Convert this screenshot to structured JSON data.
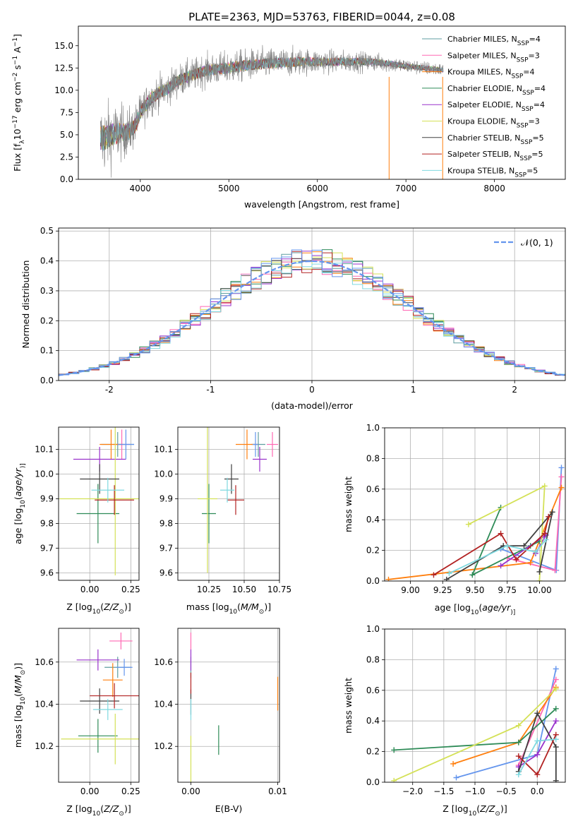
{
  "chart_data": [
    {
      "type": "line",
      "title": "PLATE=2363, MJD=53763, FIBERID=0044, z=0.08",
      "xlabel": "wavelength [Angstrom, rest frame]",
      "ylabel": "Flux [f$_\\lambda$10$^{-17}$ erg cm$^{-2}$ s$^{-1}$ A$^{-1}$]",
      "ylabel_parts": [
        "Flux [f",
        "λ",
        "10",
        "−17",
        " erg cm",
        "−2",
        " s",
        "−1",
        " A",
        "−1",
        "]"
      ],
      "xlim": [
        3300,
        8800
      ],
      "ylim": [
        0,
        17.2
      ],
      "xticks": [
        4000,
        5000,
        6000,
        7000,
        8000
      ],
      "yticks": [
        0.0,
        2.5,
        5.0,
        7.5,
        10.0,
        12.5,
        15.0
      ],
      "legend_position": "upper-right",
      "series": [
        {
          "name": "Chabrier MILES, N$_{SSP}$=4",
          "name_parts": [
            "Chabrier MILES, N",
            "SSP",
            "=4"
          ],
          "color": "#5f9ea0"
        },
        {
          "name": "Salpeter MILES, N$_{SSP}$=3",
          "name_parts": [
            "Salpeter MILES, N",
            "SSP",
            "=3"
          ],
          "color": "#ff69b4"
        },
        {
          "name": "Kroupa MILES, N$_{SSP}$=4",
          "name_parts": [
            "Kroupa MILES, N",
            "SSP",
            "=4"
          ],
          "color": "#ff7f0e"
        },
        {
          "name": "Chabrier ELODIE, N$_{SSP}$=4",
          "name_parts": [
            "Chabrier ELODIE, N",
            "SSP",
            "=4"
          ],
          "color": "#2e8b57"
        },
        {
          "name": "Salpeter ELODIE, N$_{SSP}$=4",
          "name_parts": [
            "Salpeter ELODIE, N",
            "SSP",
            "=4"
          ],
          "color": "#9932cc"
        },
        {
          "name": "Kroupa ELODIE, N$_{SSP}$=3",
          "name_parts": [
            "Kroupa ELODIE, N",
            "SSP",
            "=3"
          ],
          "color": "#d4e157"
        },
        {
          "name": "Chabrier STELIB, N$_{SSP}$=5",
          "name_parts": [
            "Chabrier STELIB, N",
            "SSP",
            "=5"
          ],
          "color": "#404040"
        },
        {
          "name": "Salpeter STELIB, N$_{SSP}$=5",
          "name_parts": [
            "Salpeter STELIB, N",
            "SSP",
            "=5"
          ],
          "color": "#b22222"
        },
        {
          "name": "Kroupa STELIB, N$_{SSP}$=5",
          "name_parts": [
            "Kroupa STELIB, N",
            "SSP",
            "=5"
          ],
          "color": "#7fd9e0"
        }
      ],
      "data_color": "#808080",
      "spectrum_continuum": [
        [
          3550,
          4.4
        ],
        [
          3650,
          4.9
        ],
        [
          3750,
          5.2
        ],
        [
          3850,
          5.3
        ],
        [
          3900,
          5.5
        ],
        [
          3950,
          6.2
        ],
        [
          4000,
          7.5
        ],
        [
          4100,
          8.9
        ],
        [
          4200,
          9.7
        ],
        [
          4300,
          10.1
        ],
        [
          4400,
          10.9
        ],
        [
          4500,
          11.4
        ],
        [
          4600,
          11.7
        ],
        [
          4700,
          12.1
        ],
        [
          4800,
          12.3
        ],
        [
          4900,
          12.4
        ],
        [
          5000,
          12.5
        ],
        [
          5200,
          12.8
        ],
        [
          5400,
          13.0
        ],
        [
          5600,
          13.1
        ],
        [
          5800,
          13.2
        ],
        [
          6000,
          13.2
        ],
        [
          6200,
          13.2
        ],
        [
          6400,
          13.2
        ],
        [
          6600,
          13.2
        ],
        [
          6800,
          13.0
        ],
        [
          7000,
          12.7
        ],
        [
          7200,
          12.5
        ],
        [
          7400,
          12.3
        ],
        [
          7600,
          12.1
        ],
        [
          7800,
          12.0
        ],
        [
          8000,
          11.9
        ],
        [
          8200,
          11.8
        ],
        [
          8400,
          11.7
        ],
        [
          8500,
          11.7
        ]
      ],
      "spectrum_noise_amplitude": [
        [
          3550,
          3.0
        ],
        [
          4000,
          1.5
        ],
        [
          4500,
          1.3
        ],
        [
          5000,
          1.3
        ],
        [
          5500,
          1.2
        ],
        [
          6000,
          1.0
        ],
        [
          6500,
          0.8
        ],
        [
          7000,
          0.6
        ],
        [
          7500,
          0.5
        ],
        [
          8000,
          0.4
        ],
        [
          8500,
          0.5
        ]
      ]
    },
    {
      "type": "histogram",
      "xlabel": "(data-model)/error",
      "ylabel": "Normed distribution",
      "xlim": [
        -2.5,
        2.5
      ],
      "ylim": [
        0,
        0.51
      ],
      "xticks": [
        -2,
        -1,
        0,
        1,
        2
      ],
      "yticks": [
        0.0,
        0.1,
        0.2,
        0.3,
        0.4,
        0.5
      ],
      "bin_width": 0.1,
      "bin_start": -2.5,
      "reference": {
        "name": "$\\mathcal{N}(0,1)$",
        "label": "𝒩(0, 1)",
        "color": "#6495ed",
        "mean": 0,
        "sigma": 1
      },
      "legend_position": "upper-right"
    },
    {
      "type": "scatter",
      "panel": "age-vs-Z",
      "xlabel": "Z [log$_{10}$(Z/Z$_\\odot$)]",
      "xlabel_parts": [
        "Z [log",
        "10",
        "(",
        "Z/Z",
        "⊙",
        ")]"
      ],
      "ylabel": "age  [log$_{10}$(age/yr)]",
      "ylabel_parts": [
        "age  [log",
        "10",
        "(",
        "age/yr",
        ")]"
      ],
      "xlim": [
        -0.19,
        0.3
      ],
      "ylim": [
        9.57,
        10.19
      ],
      "xticks": [
        0.0,
        0.25
      ],
      "xtick_labels": [
        "0.00",
        "0.25"
      ],
      "yticks": [
        9.6,
        9.7,
        9.8,
        9.9,
        10.0,
        10.1
      ],
      "points": [
        {
          "x": 0.17,
          "y": 10.12,
          "xerr": 0.1,
          "yerr": 0.05,
          "color": "#5f9ea0"
        },
        {
          "x": 0.195,
          "y": 10.12,
          "xerr": 0.05,
          "yerr": 0.06,
          "color": "#ff69b4"
        },
        {
          "x": 0.13,
          "y": 10.12,
          "xerr": 0.07,
          "yerr": 0.06,
          "color": "#ff7f0e"
        },
        {
          "x": 0.05,
          "y": 9.84,
          "xerr": 0.13,
          "yerr": 0.12,
          "color": "#2e8b57"
        },
        {
          "x": 0.06,
          "y": 10.06,
          "xerr": 0.16,
          "yerr": 0.05,
          "color": "#9932cc"
        },
        {
          "x": 0.155,
          "y": 9.9,
          "xerr": 0.34,
          "yerr": 0.31,
          "color": "#d4e157"
        },
        {
          "x": 0.06,
          "y": 9.98,
          "xerr": 0.12,
          "yerr": 0.06,
          "color": "#404040"
        },
        {
          "x": 0.15,
          "y": 9.895,
          "xerr": 0.12,
          "yerr": 0.06,
          "color": "#b22222"
        },
        {
          "x": 0.11,
          "y": 9.935,
          "xerr": 0.1,
          "yerr": 0.05,
          "color": "#7fd9e0"
        },
        {
          "x": 0.22,
          "y": 10.12,
          "xerr": 0.05,
          "yerr": 0.06,
          "color": "#6495ed"
        }
      ]
    },
    {
      "type": "scatter",
      "panel": "age-vs-mass",
      "xlabel": "mass [log$_{10}$(M/M$_\\odot$)]",
      "xlabel_parts": [
        "mass [log",
        "10",
        "(",
        "M/M",
        "⊙",
        ")]"
      ],
      "xlim": [
        10.03,
        10.75
      ],
      "ylim": [
        9.57,
        10.19
      ],
      "xticks": [
        10.25,
        10.5,
        10.75
      ],
      "xtick_labels": [
        "10.25",
        "10.50",
        "10.75"
      ],
      "yticks": [
        9.6,
        9.7,
        9.8,
        9.9,
        10.0,
        10.1
      ],
      "points": [
        {
          "x": 10.6,
          "y": 10.12,
          "xerr": 0.05,
          "yerr": 0.05,
          "color": "#5f9ea0"
        },
        {
          "x": 10.7,
          "y": 10.12,
          "xerr": 0.04,
          "yerr": 0.05,
          "color": "#ff69b4"
        },
        {
          "x": 10.52,
          "y": 10.12,
          "xerr": 0.08,
          "yerr": 0.06,
          "color": "#ff7f0e"
        },
        {
          "x": 10.25,
          "y": 9.84,
          "xerr": 0.05,
          "yerr": 0.12,
          "color": "#2e8b57"
        },
        {
          "x": 10.61,
          "y": 10.06,
          "xerr": 0.05,
          "yerr": 0.05,
          "color": "#9932cc"
        },
        {
          "x": 10.24,
          "y": 9.9,
          "xerr": 0.07,
          "yerr": 0.3,
          "color": "#d4e157"
        },
        {
          "x": 10.41,
          "y": 9.98,
          "xerr": 0.05,
          "yerr": 0.06,
          "color": "#404040"
        },
        {
          "x": 10.44,
          "y": 9.895,
          "xerr": 0.06,
          "yerr": 0.06,
          "color": "#b22222"
        },
        {
          "x": 10.38,
          "y": 9.935,
          "xerr": 0.05,
          "yerr": 0.05,
          "color": "#7fd9e0"
        },
        {
          "x": 10.58,
          "y": 10.12,
          "xerr": 0.02,
          "yerr": 0.05,
          "color": "#6495ed"
        }
      ]
    },
    {
      "type": "line",
      "panel": "weight-vs-age",
      "xlabel": "age  [log$_{10}$(age/yr)]",
      "xlabel_parts": [
        "age  [log",
        "10",
        "(",
        "age/yr",
        ")]"
      ],
      "ylabel": "mass weight",
      "xlim": [
        8.8,
        10.2
      ],
      "ylim": [
        0,
        1
      ],
      "xticks": [
        9.0,
        9.25,
        9.5,
        9.75,
        10.0
      ],
      "xtick_labels": [
        "9.00",
        "9.25",
        "9.50",
        "9.75",
        "10.00"
      ],
      "yticks": [
        0.0,
        0.2,
        0.4,
        0.6,
        0.8,
        1.0
      ],
      "series": [
        {
          "color": "#6495ed",
          "x": [
            9.7,
            10.13,
            10.17
          ],
          "y": [
            0.21,
            0.07,
            0.74
          ]
        },
        {
          "color": "#ff69b4",
          "x": [
            9.75,
            10.12,
            10.17
          ],
          "y": [
            0.15,
            0.07,
            0.68
          ]
        },
        {
          "color": "#ff7f0e",
          "x": [
            8.83,
            9.93,
            10.17
          ],
          "y": [
            0.01,
            0.12,
            0.61
          ]
        },
        {
          "color": "#2e8b57",
          "x": [
            9.7,
            9.48,
            10.0,
            9.93
          ],
          "y": [
            0.48,
            0.04,
            0.26,
            0.23
          ]
        },
        {
          "color": "#9932cc",
          "x": [
            9.7,
            10.05,
            9.97
          ],
          "y": [
            0.1,
            0.3,
            0.18
          ]
        },
        {
          "color": "#d4e157",
          "x": [
            9.45,
            10.04,
            10.0
          ],
          "y": [
            0.37,
            0.62,
            0.0
          ]
        },
        {
          "color": "#404040",
          "x": [
            9.28,
            9.72,
            9.88,
            10.1,
            10.0
          ],
          "y": [
            0.01,
            0.23,
            0.23,
            0.45,
            0.06
          ]
        },
        {
          "color": "#b22222",
          "x": [
            9.18,
            9.7,
            9.82,
            10.04,
            10.07
          ],
          "y": [
            0.04,
            0.31,
            0.14,
            0.31,
            0.42
          ]
        },
        {
          "color": "#7fd9e0",
          "x": [
            9.3,
            9.75,
            9.97,
            10.05
          ],
          "y": [
            0.05,
            0.23,
            0.19,
            0.27
          ]
        }
      ]
    },
    {
      "type": "scatter",
      "panel": "mass-vs-Z",
      "xlabel": "Z [log$_{10}$(Z/Z$_\\odot$)]",
      "xlabel_parts": [
        "Z [log",
        "10",
        "(",
        "Z/Z",
        "⊙",
        ")]"
      ],
      "ylabel": "mass [log$_{10}$(M/M$_\\odot$)]",
      "ylabel_parts": [
        "mass [log",
        "10",
        "(",
        "M/M",
        "⊙",
        ")]"
      ],
      "xlim": [
        -0.19,
        0.3
      ],
      "ylim": [
        10.03,
        10.76
      ],
      "xticks": [
        0.0,
        0.25
      ],
      "xtick_labels": [
        "0.00",
        "0.25"
      ],
      "yticks": [
        10.2,
        10.4,
        10.6
      ],
      "points": [
        {
          "x": 0.17,
          "y": 10.575,
          "xerr": 0.08,
          "yerr": 0.05,
          "color": "#5f9ea0"
        },
        {
          "x": 0.19,
          "y": 10.7,
          "xerr": 0.07,
          "yerr": 0.04,
          "color": "#ff69b4"
        },
        {
          "x": 0.14,
          "y": 10.515,
          "xerr": 0.06,
          "yerr": 0.08,
          "color": "#ff7f0e"
        },
        {
          "x": 0.05,
          "y": 10.25,
          "xerr": 0.12,
          "yerr": 0.08,
          "color": "#2e8b57"
        },
        {
          "x": 0.05,
          "y": 10.61,
          "xerr": 0.13,
          "yerr": 0.05,
          "color": "#9932cc"
        },
        {
          "x": 0.155,
          "y": 10.235,
          "xerr": 0.33,
          "yerr": 0.12,
          "color": "#d4e157"
        },
        {
          "x": 0.06,
          "y": 10.415,
          "xerr": 0.12,
          "yerr": 0.06,
          "color": "#404040"
        },
        {
          "x": 0.15,
          "y": 10.44,
          "xerr": 0.15,
          "yerr": 0.06,
          "color": "#b22222"
        },
        {
          "x": 0.11,
          "y": 10.375,
          "xerr": 0.09,
          "yerr": 0.05,
          "color": "#7fd9e0"
        },
        {
          "x": 0.21,
          "y": 10.575,
          "xerr": 0.05,
          "yerr": 0.04,
          "color": "#6495ed"
        }
      ]
    },
    {
      "type": "scatter",
      "panel": "mass-vs-EBV",
      "xlabel": "E(B-V)",
      "xlim": [
        -0.0015,
        0.0102
      ],
      "ylim": [
        10.03,
        10.76
      ],
      "xticks": [
        0.0,
        0.01
      ],
      "xtick_labels": [
        "0.00",
        "0.01"
      ],
      "yticks": [
        10.2,
        10.4,
        10.6
      ],
      "points": [
        {
          "x": 0.0,
          "y": 10.575,
          "xerr": 0,
          "yerr": 0.05,
          "color": "#5f9ea0"
        },
        {
          "x": 0.0,
          "y": 10.7,
          "xerr": 0,
          "yerr": 0.04,
          "color": "#ff69b4"
        },
        {
          "x": 0.01,
          "y": 10.45,
          "xerr": 0,
          "yerr": 0.08,
          "color": "#ff7f0e"
        },
        {
          "x": 0.0032,
          "y": 10.23,
          "xerr": 0,
          "yerr": 0.07,
          "color": "#2e8b57"
        },
        {
          "x": 0.0,
          "y": 10.61,
          "xerr": 0,
          "yerr": 0.05,
          "color": "#9932cc"
        },
        {
          "x": 0.0,
          "y": 10.13,
          "xerr": 0,
          "yerr": 0.12,
          "color": "#d4e157"
        },
        {
          "x": 0.0,
          "y": 10.41,
          "xerr": 0,
          "yerr": 0.06,
          "color": "#404040"
        },
        {
          "x": 0.0,
          "y": 10.5,
          "xerr": 0,
          "yerr": 0.05,
          "color": "#b22222"
        },
        {
          "x": 0.0,
          "y": 10.375,
          "xerr": 0,
          "yerr": 0.05,
          "color": "#7fd9e0"
        }
      ]
    },
    {
      "type": "line",
      "panel": "weight-vs-Z",
      "xlabel": "Z [log$_{10}$(Z/Z$_\\odot$)]",
      "xlabel_parts": [
        "Z [log",
        "10",
        "(",
        "Z/Z",
        "⊙",
        ")]"
      ],
      "ylabel": "mass weight",
      "xlim": [
        -2.45,
        0.45
      ],
      "ylim": [
        0,
        1
      ],
      "xticks": [
        -2.0,
        -1.5,
        -1.0,
        -0.5,
        0.0
      ],
      "xtick_labels": [
        "−2.0",
        "−1.5",
        "−1.0",
        "−0.5",
        "0.0"
      ],
      "yticks": [
        0.0,
        0.2,
        0.4,
        0.6,
        0.8,
        1.0
      ],
      "series": [
        {
          "color": "#6495ed",
          "x": [
            -1.3,
            0.0,
            0.3
          ],
          "y": [
            0.03,
            0.18,
            0.74
          ]
        },
        {
          "color": "#ff69b4",
          "x": [
            -0.3,
            0.3
          ],
          "y": [
            0.11,
            0.67
          ]
        },
        {
          "color": "#ff7f0e",
          "x": [
            -1.35,
            -0.3,
            0.3
          ],
          "y": [
            0.12,
            0.26,
            0.62
          ]
        },
        {
          "color": "#2e8b57",
          "x": [
            -2.3,
            -0.3,
            0.3
          ],
          "y": [
            0.21,
            0.26,
            0.48
          ]
        },
        {
          "color": "#9932cc",
          "x": [
            -0.3,
            0.0,
            0.3
          ],
          "y": [
            0.1,
            0.18,
            0.4
          ]
        },
        {
          "color": "#d4e157",
          "x": [
            -2.3,
            -0.3,
            0.3
          ],
          "y": [
            0.01,
            0.37,
            0.61
          ]
        },
        {
          "color": "#404040",
          "x": [
            -0.3,
            0.0,
            0.3,
            0.3
          ],
          "y": [
            0.07,
            0.45,
            0.23,
            0.01
          ]
        },
        {
          "color": "#b22222",
          "x": [
            -0.3,
            0.0,
            0.3
          ],
          "y": [
            0.17,
            0.05,
            0.31
          ]
        },
        {
          "color": "#7fd9e0",
          "x": [
            -0.3,
            0.0,
            0.3
          ],
          "y": [
            0.05,
            0.27,
            0.28
          ]
        }
      ]
    }
  ]
}
